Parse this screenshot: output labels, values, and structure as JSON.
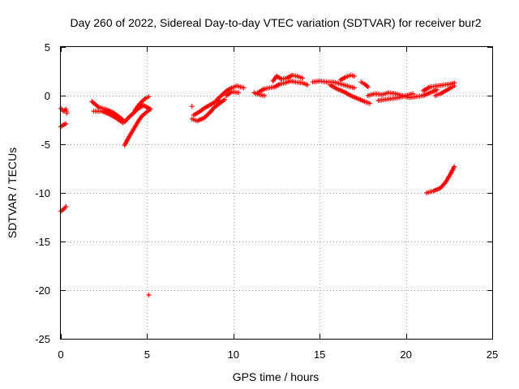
{
  "chart_data": {
    "type": "scatter",
    "title": "Day 260 of 2022, Sidereal Day-to-day VTEC variation (SDTVAR) for receiver bur2",
    "xlabel": "GPS time / hours",
    "ylabel": "SDTVAR / TECUs",
    "xlim": [
      0,
      25
    ],
    "ylim": [
      -25,
      5
    ],
    "x_ticks": [
      "0",
      "5",
      "10",
      "15",
      "20",
      "25"
    ],
    "y_ticks": [
      "5",
      "0",
      "-5",
      "-10",
      "-15",
      "-20",
      "-25"
    ],
    "grid": true,
    "marker": "plus",
    "series": [
      {
        "name": "SDTVAR",
        "color": "#ff0000",
        "segments": [
          [
            [
              0.0,
              -1.3
            ],
            [
              0.15,
              -1.6
            ],
            [
              0.3,
              -1.4
            ],
            [
              0.35,
              -1.8
            ]
          ],
          [
            [
              0.0,
              -3.2
            ],
            [
              0.15,
              -3.0
            ],
            [
              0.3,
              -2.9
            ]
          ],
          [
            [
              0.0,
              -11.9
            ],
            [
              0.15,
              -11.7
            ],
            [
              0.3,
              -11.4
            ]
          ],
          [
            [
              1.8,
              -0.6
            ],
            [
              2.2,
              -1.2
            ],
            [
              2.6,
              -1.4
            ],
            [
              3.0,
              -1.7
            ],
            [
              3.4,
              -2.2
            ],
            [
              3.7,
              -2.7
            ],
            [
              3.9,
              -2.3
            ],
            [
              4.2,
              -1.8
            ],
            [
              4.5,
              -1.3
            ],
            [
              4.8,
              -1.0
            ],
            [
              5.2,
              -1.4
            ]
          ],
          [
            [
              1.9,
              -1.6
            ],
            [
              2.4,
              -1.6
            ],
            [
              2.8,
              -1.9
            ],
            [
              3.2,
              -2.3
            ],
            [
              3.6,
              -2.8
            ]
          ],
          [
            [
              3.7,
              -5.1
            ],
            [
              3.9,
              -4.4
            ],
            [
              4.1,
              -3.8
            ],
            [
              4.3,
              -3.2
            ],
            [
              4.5,
              -2.6
            ],
            [
              4.7,
              -2.1
            ],
            [
              4.9,
              -1.8
            ],
            [
              5.1,
              -1.5
            ]
          ],
          [
            [
              4.3,
              -1.5
            ],
            [
              4.5,
              -1.0
            ],
            [
              4.7,
              -0.6
            ],
            [
              4.9,
              -0.3
            ],
            [
              5.1,
              -0.1
            ]
          ],
          [
            [
              5.1,
              -20.5
            ]
          ],
          [
            [
              7.6,
              -1.1
            ]
          ],
          [
            [
              7.6,
              -2.4
            ],
            [
              7.9,
              -2.6
            ],
            [
              8.3,
              -2.3
            ],
            [
              8.6,
              -1.8
            ],
            [
              8.9,
              -1.2
            ],
            [
              9.2,
              -0.8
            ],
            [
              9.5,
              -0.4
            ]
          ],
          [
            [
              7.7,
              -2.0
            ],
            [
              8.0,
              -1.7
            ],
            [
              8.3,
              -1.3
            ],
            [
              8.6,
              -1.0
            ],
            [
              8.9,
              -0.7
            ],
            [
              9.2,
              -0.5
            ]
          ],
          [
            [
              9.0,
              -0.5
            ],
            [
              9.3,
              0.0
            ],
            [
              9.6,
              0.5
            ],
            [
              9.9,
              0.8
            ],
            [
              10.2,
              1.0
            ],
            [
              10.6,
              0.8
            ]
          ],
          [
            [
              9.6,
              0.0
            ],
            [
              9.9,
              0.4
            ],
            [
              10.3,
              0.3
            ]
          ],
          [
            [
              11.3,
              0.2
            ],
            [
              11.5,
              0.4
            ],
            [
              11.8,
              0.7
            ],
            [
              12.1,
              0.8
            ],
            [
              12.4,
              0.9
            ],
            [
              12.7,
              1.2
            ],
            [
              13.0,
              1.3
            ],
            [
              13.3,
              1.5
            ],
            [
              13.6,
              1.4
            ],
            [
              14.0,
              1.3
            ],
            [
              14.3,
              1.1
            ]
          ],
          [
            [
              12.3,
              1.5
            ],
            [
              12.5,
              2.0
            ],
            [
              12.8,
              1.7
            ],
            [
              13.1,
              1.8
            ],
            [
              13.4,
              2.1
            ],
            [
              13.7,
              2.0
            ],
            [
              14.0,
              1.8
            ]
          ],
          [
            [
              11.2,
              0.3
            ],
            [
              11.5,
              0.1
            ],
            [
              11.8,
              0.0
            ]
          ],
          [
            [
              14.6,
              1.4
            ],
            [
              15.0,
              1.5
            ],
            [
              15.4,
              1.4
            ],
            [
              15.8,
              1.4
            ],
            [
              16.2,
              1.2
            ],
            [
              16.6,
              1.0
            ],
            [
              17.0,
              0.8
            ]
          ],
          [
            [
              15.6,
              1.1
            ],
            [
              16.0,
              0.7
            ],
            [
              16.4,
              0.4
            ],
            [
              16.8,
              0.0
            ],
            [
              17.2,
              -0.3
            ],
            [
              17.6,
              -0.6
            ],
            [
              17.9,
              -0.8
            ]
          ],
          [
            [
              16.2,
              1.6
            ],
            [
              16.5,
              1.9
            ],
            [
              16.8,
              2.1
            ],
            [
              17.0,
              2.0
            ]
          ],
          [
            [
              17.4,
              1.4
            ],
            [
              17.6,
              1.2
            ],
            [
              17.8,
              0.9
            ]
          ],
          [
            [
              17.8,
              0.0
            ],
            [
              18.2,
              0.2
            ],
            [
              18.6,
              0.1
            ],
            [
              19.0,
              0.3
            ],
            [
              19.4,
              0.2
            ],
            [
              19.8,
              0.0
            ],
            [
              20.2,
              -0.2
            ],
            [
              20.6,
              -0.1
            ],
            [
              21.0,
              0.0
            ],
            [
              21.4,
              0.3
            ],
            [
              21.8,
              0.6
            ]
          ],
          [
            [
              18.4,
              -0.5
            ],
            [
              18.8,
              -0.4
            ],
            [
              19.2,
              -0.3
            ],
            [
              19.6,
              -0.2
            ],
            [
              20.0,
              0.0
            ],
            [
              20.4,
              0.2
            ]
          ],
          [
            [
              21.0,
              0.5
            ],
            [
              21.4,
              0.9
            ],
            [
              21.8,
              1.0
            ],
            [
              22.2,
              1.1
            ],
            [
              22.6,
              1.2
            ],
            [
              22.8,
              1.3
            ]
          ],
          [
            [
              21.7,
              0.0
            ],
            [
              22.0,
              0.2
            ],
            [
              22.3,
              0.5
            ],
            [
              22.6,
              0.8
            ],
            [
              22.8,
              1.0
            ]
          ],
          [
            [
              21.2,
              -10.0
            ],
            [
              21.6,
              -9.8
            ],
            [
              22.0,
              -9.5
            ],
            [
              22.3,
              -8.9
            ],
            [
              22.6,
              -8.0
            ],
            [
              22.8,
              -7.3
            ]
          ]
        ]
      }
    ]
  }
}
